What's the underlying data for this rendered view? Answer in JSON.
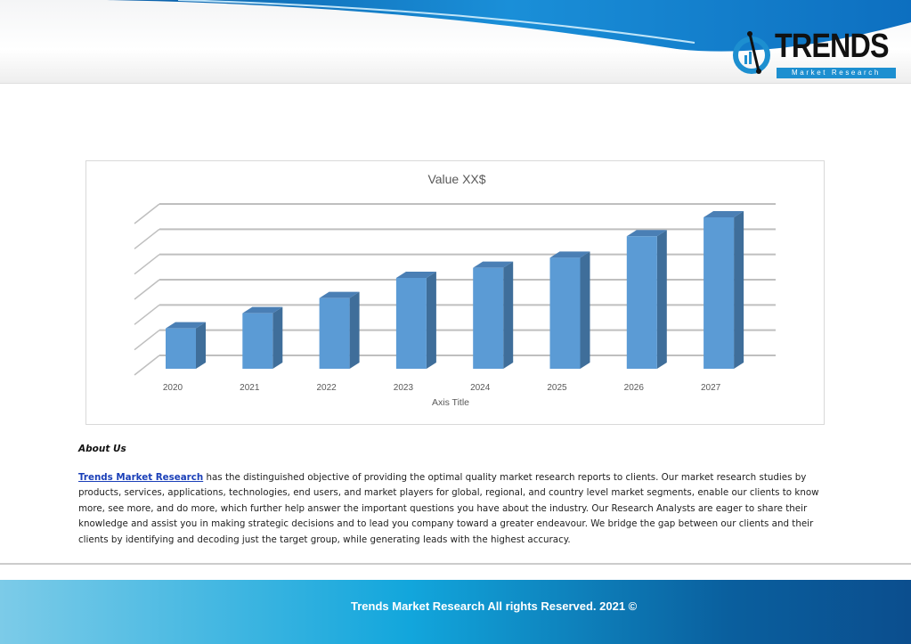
{
  "header": {
    "logo_word": "TRENDS",
    "logo_sub": "Market Research"
  },
  "chart_data": {
    "type": "bar",
    "title": "Value XX$",
    "xlabel": "Axis Title",
    "ylabel": "",
    "categories": [
      "2020",
      "2021",
      "2022",
      "2023",
      "2024",
      "2025",
      "2026",
      "2027"
    ],
    "values": [
      1.6,
      2.2,
      2.8,
      3.6,
      4.0,
      4.4,
      5.25,
      6.0
    ],
    "ylim": [
      0,
      6
    ],
    "grid": true,
    "style": "3d-column",
    "colors": {
      "front": "#5b9bd5",
      "side": "#3f6e9a",
      "top": "#4a7fb5"
    }
  },
  "about": {
    "heading": "About Us",
    "link": "Trends Market Research",
    "lines": [
      " has the distinguished objective of providing the optimal quality market research reports to clients. Our market research studies by",
      "products, services, applications, technologies, end users, and market players for global, regional, and country level market segments, enable our clients to know",
      "more, see more, and do more, which further help answer the important questions you have about the industry. Our Research Analysts are eager to share their",
      "knowledge and assist you in making strategic decisions and to lead you company toward a greater endeavour. We bridge the gap between our clients and their",
      "clients by identifying and decoding just the target group, while generating leads with the highest accuracy."
    ]
  },
  "footer": {
    "text": "Trends Market Research All rights Reserved. 2021 ©"
  }
}
